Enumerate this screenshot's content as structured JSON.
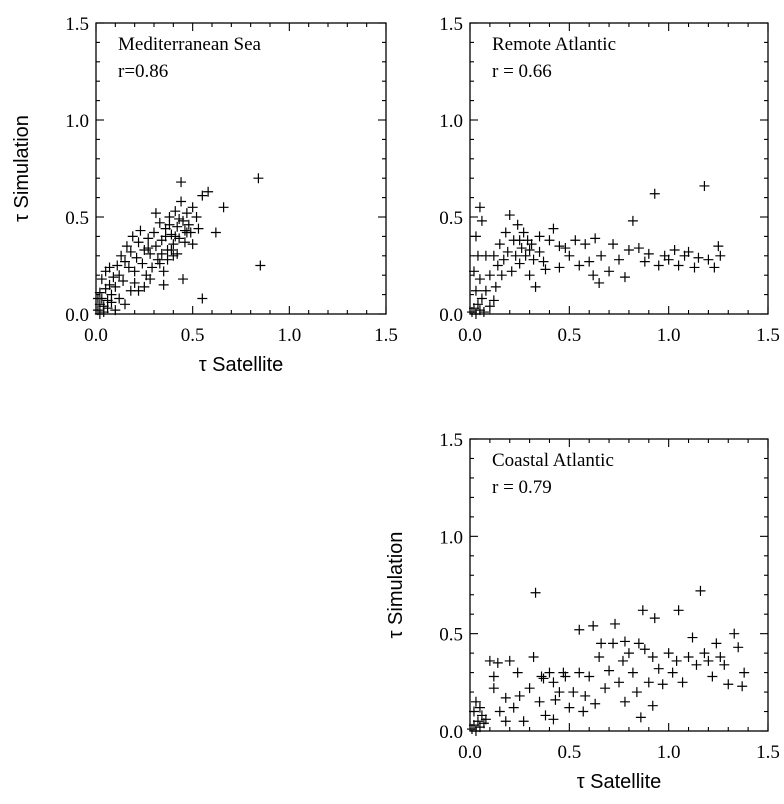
{
  "chart_data": [
    {
      "type": "scatter",
      "title": "Mediterranean Sea",
      "annotation": "r=0.86",
      "xlabel": "τ Satellite",
      "ylabel": "τ Simulation",
      "xlim": [
        0,
        1.5
      ],
      "ylim": [
        0,
        1.5
      ],
      "xticks": [
        "0.0",
        "0.5",
        "1.0",
        "1.5"
      ],
      "yticks": [
        "0.0",
        "0.5",
        "1.0",
        "1.5"
      ],
      "points": [
        [
          0.01,
          0.02
        ],
        [
          0.02,
          0.05
        ],
        [
          0.03,
          0.08
        ],
        [
          0.02,
          0.11
        ],
        [
          0.04,
          0.04
        ],
        [
          0.05,
          0.13
        ],
        [
          0.03,
          0.18
        ],
        [
          0.06,
          0.07
        ],
        [
          0.07,
          0.15
        ],
        [
          0.08,
          0.1
        ],
        [
          0.05,
          0.22
        ],
        [
          0.09,
          0.19
        ],
        [
          0.1,
          0.14
        ],
        [
          0.11,
          0.25
        ],
        [
          0.12,
          0.2
        ],
        [
          0.13,
          0.3
        ],
        [
          0.14,
          0.17
        ],
        [
          0.15,
          0.27
        ],
        [
          0.16,
          0.35
        ],
        [
          0.17,
          0.24
        ],
        [
          0.18,
          0.32
        ],
        [
          0.19,
          0.4
        ],
        [
          0.2,
          0.22
        ],
        [
          0.21,
          0.29
        ],
        [
          0.22,
          0.37
        ],
        [
          0.23,
          0.43
        ],
        [
          0.24,
          0.26
        ],
        [
          0.25,
          0.33
        ],
        [
          0.26,
          0.2
        ],
        [
          0.27,
          0.39
        ],
        [
          0.28,
          0.31
        ],
        [
          0.29,
          0.24
        ],
        [
          0.3,
          0.42
        ],
        [
          0.31,
          0.35
        ],
        [
          0.32,
          0.28
        ],
        [
          0.33,
          0.47
        ],
        [
          0.34,
          0.38
        ],
        [
          0.35,
          0.22
        ],
        [
          0.36,
          0.44
        ],
        [
          0.37,
          0.33
        ],
        [
          0.38,
          0.5
        ],
        [
          0.39,
          0.41
        ],
        [
          0.4,
          0.36
        ],
        [
          0.41,
          0.53
        ],
        [
          0.42,
          0.45
        ],
        [
          0.43,
          0.39
        ],
        [
          0.44,
          0.58
        ],
        [
          0.45,
          0.48
        ],
        [
          0.46,
          0.43
        ],
        [
          0.47,
          0.52
        ],
        [
          0.48,
          0.46
        ],
        [
          0.5,
          0.55
        ],
        [
          0.52,
          0.5
        ],
        [
          0.55,
          0.61
        ],
        [
          0.58,
          0.63
        ],
        [
          0.62,
          0.42
        ],
        [
          0.66,
          0.55
        ],
        [
          0.84,
          0.7
        ],
        [
          0.85,
          0.25
        ],
        [
          0.55,
          0.08
        ],
        [
          0.44,
          0.68
        ],
        [
          0.35,
          0.15
        ],
        [
          0.31,
          0.52
        ],
        [
          0.4,
          0.3
        ],
        [
          0.45,
          0.18
        ],
        [
          0.5,
          0.36
        ],
        [
          0.02,
          0.0
        ],
        [
          0.04,
          0.01
        ],
        [
          0.06,
          0.03
        ],
        [
          0.08,
          0.06
        ],
        [
          0.1,
          0.02
        ],
        [
          0.01,
          0.08
        ],
        [
          0.07,
          0.24
        ],
        [
          0.12,
          0.08
        ],
        [
          0.15,
          0.05
        ],
        [
          0.18,
          0.12
        ],
        [
          0.2,
          0.16
        ],
        [
          0.22,
          0.12
        ],
        [
          0.25,
          0.14
        ],
        [
          0.28,
          0.18
        ],
        [
          0.33,
          0.26
        ],
        [
          0.37,
          0.28
        ],
        [
          0.42,
          0.31
        ],
        [
          0.46,
          0.37
        ],
        [
          0.49,
          0.42
        ],
        [
          0.53,
          0.44
        ],
        [
          0.36,
          0.4
        ],
        [
          0.38,
          0.46
        ],
        [
          0.41,
          0.4
        ],
        [
          0.43,
          0.49
        ],
        [
          0.47,
          0.42
        ],
        [
          0.39,
          0.33
        ],
        [
          0.34,
          0.31
        ],
        [
          0.27,
          0.34
        ]
      ]
    },
    {
      "type": "scatter",
      "title": "Remote Atlantic",
      "annotation": "r = 0.66",
      "xlabel": "",
      "ylabel": "",
      "xlim": [
        0,
        1.5
      ],
      "ylim": [
        0,
        1.5
      ],
      "xticks": [
        "0.0",
        "0.5",
        "1.0",
        "1.5"
      ],
      "yticks": [
        "0.0",
        "0.5",
        "1.0",
        "1.5"
      ],
      "points": [
        [
          0.01,
          0.01
        ],
        [
          0.02,
          0.03
        ],
        [
          0.03,
          0.0
        ],
        [
          0.04,
          0.05
        ],
        [
          0.05,
          0.02
        ],
        [
          0.06,
          0.08
        ],
        [
          0.07,
          0.01
        ],
        [
          0.03,
          0.12
        ],
        [
          0.05,
          0.18
        ],
        [
          0.02,
          0.22
        ],
        [
          0.04,
          0.3
        ],
        [
          0.03,
          0.4
        ],
        [
          0.05,
          0.55
        ],
        [
          0.06,
          0.48
        ],
        [
          0.08,
          0.12
        ],
        [
          0.1,
          0.2
        ],
        [
          0.12,
          0.3
        ],
        [
          0.14,
          0.25
        ],
        [
          0.15,
          0.36
        ],
        [
          0.17,
          0.28
        ],
        [
          0.18,
          0.42
        ],
        [
          0.19,
          0.32
        ],
        [
          0.2,
          0.51
        ],
        [
          0.21,
          0.22
        ],
        [
          0.22,
          0.38
        ],
        [
          0.23,
          0.3
        ],
        [
          0.24,
          0.46
        ],
        [
          0.25,
          0.26
        ],
        [
          0.26,
          0.34
        ],
        [
          0.27,
          0.42
        ],
        [
          0.28,
          0.3
        ],
        [
          0.29,
          0.38
        ],
        [
          0.3,
          0.2
        ],
        [
          0.31,
          0.36
        ],
        [
          0.32,
          0.28
        ],
        [
          0.33,
          0.14
        ],
        [
          0.35,
          0.32
        ],
        [
          0.37,
          0.27
        ],
        [
          0.4,
          0.38
        ],
        [
          0.42,
          0.44
        ],
        [
          0.45,
          0.24
        ],
        [
          0.48,
          0.34
        ],
        [
          0.5,
          0.3
        ],
        [
          0.53,
          0.38
        ],
        [
          0.55,
          0.25
        ],
        [
          0.58,
          0.36
        ],
        [
          0.6,
          0.27
        ],
        [
          0.63,
          0.39
        ],
        [
          0.66,
          0.3
        ],
        [
          0.7,
          0.22
        ],
        [
          0.72,
          0.36
        ],
        [
          0.75,
          0.28
        ],
        [
          0.78,
          0.19
        ],
        [
          0.8,
          0.33
        ],
        [
          0.82,
          0.48
        ],
        [
          0.85,
          0.34
        ],
        [
          0.88,
          0.27
        ],
        [
          0.9,
          0.31
        ],
        [
          0.93,
          0.62
        ],
        [
          0.95,
          0.25
        ],
        [
          0.98,
          0.3
        ],
        [
          1.0,
          0.28
        ],
        [
          1.03,
          0.33
        ],
        [
          1.05,
          0.25
        ],
        [
          1.08,
          0.3
        ],
        [
          1.1,
          0.32
        ],
        [
          1.13,
          0.24
        ],
        [
          1.15,
          0.29
        ],
        [
          1.18,
          0.66
        ],
        [
          1.2,
          0.28
        ],
        [
          1.23,
          0.24
        ],
        [
          1.25,
          0.35
        ],
        [
          1.26,
          0.3
        ],
        [
          0.65,
          0.16
        ],
        [
          0.62,
          0.2
        ],
        [
          0.45,
          0.35
        ],
        [
          0.38,
          0.23
        ],
        [
          0.12,
          0.07
        ],
        [
          0.1,
          0.04
        ],
        [
          0.13,
          0.14
        ],
        [
          0.08,
          0.3
        ],
        [
          0.16,
          0.2
        ],
        [
          0.25,
          0.38
        ],
        [
          0.3,
          0.33
        ],
        [
          0.35,
          0.4
        ]
      ]
    },
    {
      "type": "scatter",
      "title": "Coastal Atlantic",
      "annotation": "r = 0.79",
      "xlabel": "τ Satellite",
      "ylabel": "τ Simulation",
      "xlim": [
        0,
        1.5
      ],
      "ylim": [
        0,
        1.5
      ],
      "xticks": [
        "0.0",
        "0.5",
        "1.0",
        "1.5"
      ],
      "yticks": [
        "0.0",
        "0.5",
        "1.0",
        "1.5"
      ],
      "points": [
        [
          0.01,
          0.01
        ],
        [
          0.02,
          0.03
        ],
        [
          0.03,
          0.0
        ],
        [
          0.04,
          0.05
        ],
        [
          0.05,
          0.02
        ],
        [
          0.06,
          0.08
        ],
        [
          0.07,
          0.04
        ],
        [
          0.02,
          0.1
        ],
        [
          0.03,
          0.15
        ],
        [
          0.05,
          0.12
        ],
        [
          0.08,
          0.06
        ],
        [
          0.1,
          0.36
        ],
        [
          0.12,
          0.28
        ],
        [
          0.14,
          0.35
        ],
        [
          0.15,
          0.1
        ],
        [
          0.18,
          0.05
        ],
        [
          0.2,
          0.36
        ],
        [
          0.22,
          0.12
        ],
        [
          0.24,
          0.3
        ],
        [
          0.25,
          0.18
        ],
        [
          0.27,
          0.05
        ],
        [
          0.3,
          0.22
        ],
        [
          0.32,
          0.38
        ],
        [
          0.33,
          0.71
        ],
        [
          0.35,
          0.15
        ],
        [
          0.37,
          0.27
        ],
        [
          0.38,
          0.08
        ],
        [
          0.4,
          0.3
        ],
        [
          0.42,
          0.06
        ],
        [
          0.45,
          0.2
        ],
        [
          0.47,
          0.3
        ],
        [
          0.5,
          0.12
        ],
        [
          0.52,
          0.2
        ],
        [
          0.55,
          0.3
        ],
        [
          0.57,
          0.1
        ],
        [
          0.6,
          0.28
        ],
        [
          0.62,
          0.54
        ],
        [
          0.63,
          0.14
        ],
        [
          0.65,
          0.38
        ],
        [
          0.68,
          0.22
        ],
        [
          0.7,
          0.31
        ],
        [
          0.72,
          0.45
        ],
        [
          0.73,
          0.55
        ],
        [
          0.75,
          0.25
        ],
        [
          0.77,
          0.36
        ],
        [
          0.78,
          0.15
        ],
        [
          0.8,
          0.4
        ],
        [
          0.82,
          0.3
        ],
        [
          0.84,
          0.2
        ],
        [
          0.86,
          0.07
        ],
        [
          0.87,
          0.62
        ],
        [
          0.88,
          0.42
        ],
        [
          0.9,
          0.25
        ],
        [
          0.92,
          0.38
        ],
        [
          0.93,
          0.58
        ],
        [
          0.95,
          0.32
        ],
        [
          0.97,
          0.24
        ],
        [
          1.0,
          0.4
        ],
        [
          1.02,
          0.3
        ],
        [
          1.04,
          0.36
        ],
        [
          1.05,
          0.62
        ],
        [
          1.07,
          0.25
        ],
        [
          1.1,
          0.38
        ],
        [
          1.12,
          0.48
        ],
        [
          1.14,
          0.34
        ],
        [
          1.16,
          0.72
        ],
        [
          1.18,
          0.4
        ],
        [
          1.2,
          0.36
        ],
        [
          1.22,
          0.28
        ],
        [
          1.24,
          0.45
        ],
        [
          1.26,
          0.38
        ],
        [
          1.28,
          0.34
        ],
        [
          1.3,
          0.24
        ],
        [
          1.33,
          0.5
        ],
        [
          1.35,
          0.43
        ],
        [
          1.37,
          0.23
        ],
        [
          1.38,
          0.3
        ],
        [
          0.55,
          0.52
        ],
        [
          0.48,
          0.28
        ],
        [
          0.66,
          0.45
        ],
        [
          0.85,
          0.45
        ],
        [
          0.78,
          0.46
        ],
        [
          0.92,
          0.13
        ],
        [
          0.36,
          0.28
        ],
        [
          0.43,
          0.16
        ],
        [
          0.58,
          0.18
        ],
        [
          0.18,
          0.17
        ],
        [
          0.12,
          0.22
        ],
        [
          0.42,
          0.25
        ]
      ]
    }
  ]
}
